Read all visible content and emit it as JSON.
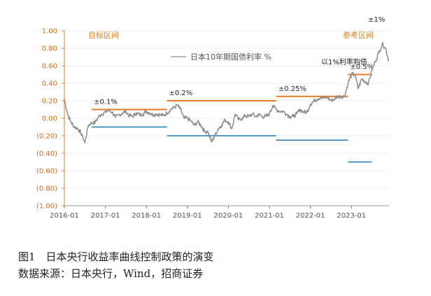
{
  "caption": {
    "figure": "图1　日本央行收益率曲线控制政策的演变",
    "source": "数据来源：日本央行，Wind，招商证券"
  },
  "colors": {
    "band_upper": "#e07b2a",
    "band_lower": "#1f77b4",
    "series": "#8c8c8c",
    "axis": "#e07b2a"
  },
  "chart_data": {
    "type": "line",
    "title": "",
    "xlabel": "",
    "ylabel": "",
    "ylim": [
      -1.0,
      1.0
    ],
    "xlim": [
      "2016-01",
      "2023-12"
    ],
    "y_ticks": [
      "1.00",
      "0.80",
      "0.60",
      "0.40",
      "0.20",
      "0.00",
      "(0.20)",
      "(0.40)",
      "(0.60)",
      "(0.80)",
      "(1.00)"
    ],
    "x_ticks": [
      "2016-01",
      "2017-01",
      "2018-01",
      "2019-01",
      "2020-01",
      "2021-01",
      "2022-01",
      "2023-01"
    ],
    "legend": {
      "label": "日本10年期国债利率 %",
      "position": "top-center"
    },
    "zone_labels": [
      "目标区间",
      "参考区间"
    ],
    "series": [
      {
        "name": "日本10年期国债利率 %",
        "points": [
          [
            "2016-01",
            0.22
          ],
          [
            "2016-02",
            0.04
          ],
          [
            "2016-03",
            -0.05
          ],
          [
            "2016-04",
            -0.1
          ],
          [
            "2016-05",
            -0.12
          ],
          [
            "2016-06",
            -0.18
          ],
          [
            "2016-07",
            -0.28
          ],
          [
            "2016-08",
            -0.08
          ],
          [
            "2016-09",
            -0.05
          ],
          [
            "2016-10",
            -0.05
          ],
          [
            "2016-11",
            0.02
          ],
          [
            "2016-12",
            0.05
          ],
          [
            "2017-01",
            0.07
          ],
          [
            "2017-02",
            0.09
          ],
          [
            "2017-03",
            0.07
          ],
          [
            "2017-04",
            0.01
          ],
          [
            "2017-05",
            0.04
          ],
          [
            "2017-06",
            0.06
          ],
          [
            "2017-07",
            0.08
          ],
          [
            "2017-08",
            0.03
          ],
          [
            "2017-09",
            0.02
          ],
          [
            "2017-10",
            0.06
          ],
          [
            "2017-11",
            0.04
          ],
          [
            "2017-12",
            0.05
          ],
          [
            "2018-01",
            0.08
          ],
          [
            "2018-02",
            0.06
          ],
          [
            "2018-03",
            0.04
          ],
          [
            "2018-04",
            0.05
          ],
          [
            "2018-05",
            0.04
          ],
          [
            "2018-06",
            0.03
          ],
          [
            "2018-07",
            0.06
          ],
          [
            "2018-08",
            0.1
          ],
          [
            "2018-09",
            0.12
          ],
          [
            "2018-10",
            0.15
          ],
          [
            "2018-11",
            0.1
          ],
          [
            "2018-12",
            0.0
          ],
          [
            "2019-01",
            0.0
          ],
          [
            "2019-02",
            -0.03
          ],
          [
            "2019-03",
            -0.08
          ],
          [
            "2019-04",
            -0.04
          ],
          [
            "2019-05",
            -0.08
          ],
          [
            "2019-06",
            -0.15
          ],
          [
            "2019-07",
            -0.15
          ],
          [
            "2019-08",
            -0.27
          ],
          [
            "2019-09",
            -0.2
          ],
          [
            "2019-10",
            -0.12
          ],
          [
            "2019-11",
            -0.08
          ],
          [
            "2019-12",
            -0.02
          ],
          [
            "2020-01",
            -0.04
          ],
          [
            "2020-02",
            -0.12
          ],
          [
            "2020-03",
            0.05
          ],
          [
            "2020-04",
            -0.02
          ],
          [
            "2020-05",
            0.0
          ],
          [
            "2020-06",
            0.03
          ],
          [
            "2020-07",
            0.02
          ],
          [
            "2020-08",
            0.05
          ],
          [
            "2020-09",
            0.02
          ],
          [
            "2020-10",
            0.04
          ],
          [
            "2020-11",
            0.02
          ],
          [
            "2020-12",
            0.02
          ],
          [
            "2021-01",
            0.05
          ],
          [
            "2021-02",
            0.15
          ],
          [
            "2021-03",
            0.1
          ],
          [
            "2021-04",
            0.08
          ],
          [
            "2021-05",
            0.08
          ],
          [
            "2021-06",
            0.05
          ],
          [
            "2021-07",
            0.02
          ],
          [
            "2021-08",
            0.02
          ],
          [
            "2021-09",
            0.05
          ],
          [
            "2021-10",
            0.1
          ],
          [
            "2021-11",
            0.07
          ],
          [
            "2021-12",
            0.07
          ],
          [
            "2022-01",
            0.16
          ],
          [
            "2022-02",
            0.2
          ],
          [
            "2022-03",
            0.22
          ],
          [
            "2022-04",
            0.24
          ],
          [
            "2022-05",
            0.23
          ],
          [
            "2022-06",
            0.24
          ],
          [
            "2022-07",
            0.2
          ],
          [
            "2022-08",
            0.22
          ],
          [
            "2022-09",
            0.25
          ],
          [
            "2022-10",
            0.25
          ],
          [
            "2022-11",
            0.25
          ],
          [
            "2022-12",
            0.4
          ],
          [
            "2023-01",
            0.5
          ],
          [
            "2023-02",
            0.5
          ],
          [
            "2023-03",
            0.34
          ],
          [
            "2023-04",
            0.45
          ],
          [
            "2023-05",
            0.42
          ],
          [
            "2023-06",
            0.4
          ],
          [
            "2023-07",
            0.55
          ],
          [
            "2023-08",
            0.65
          ],
          [
            "2023-09",
            0.75
          ],
          [
            "2023-10",
            0.85
          ],
          [
            "2023-11",
            0.8
          ],
          [
            "2023-12",
            0.65
          ]
        ]
      }
    ],
    "bands": [
      {
        "label": "±0.1%",
        "start": "2016-09",
        "end": "2018-07",
        "upper": 0.1,
        "lower": -0.1
      },
      {
        "label": "±0.2%",
        "start": "2018-07",
        "end": "2021-03",
        "upper": 0.2,
        "lower": -0.2
      },
      {
        "label": "±0.25%",
        "start": "2021-03",
        "end": "2022-12",
        "upper": 0.25,
        "lower": -0.25
      },
      {
        "label": "±0.5%",
        "start": "2022-12",
        "end": "2023-07",
        "upper": 0.5,
        "lower": -0.5
      },
      {
        "label": "±1%",
        "start": "2023-07",
        "end": "2023-12",
        "upper": null,
        "lower": null
      }
    ],
    "annotations": [
      "以1%利率购债"
    ]
  }
}
